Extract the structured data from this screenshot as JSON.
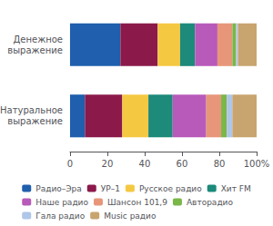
{
  "chart_data": {
    "type": "bar",
    "orientation": "horizontal",
    "stacked": true,
    "categories": [
      "Натуральное\nвыражение",
      "Денежное\nвыражение"
    ],
    "series": [
      {
        "name": "Радио–Эра",
        "color": "#1f5fad",
        "values": [
          8,
          27
        ]
      },
      {
        "name": "УР–1",
        "color": "#8b1a4a",
        "values": [
          20,
          20
        ]
      },
      {
        "name": "Русское радио",
        "color": "#f5c842",
        "values": [
          14,
          12
        ]
      },
      {
        "name": "Хит FM",
        "color": "#1d8a7a",
        "values": [
          13,
          8
        ]
      },
      {
        "name": "Наше радио",
        "color": "#b85aba",
        "values": [
          18,
          12
        ]
      },
      {
        "name": "Шансон 101,9",
        "color": "#e8967a",
        "values": [
          8,
          8
        ]
      },
      {
        "name": "Авторадио",
        "color": "#7ab648",
        "values": [
          3,
          2
        ]
      },
      {
        "name": "Гала радио",
        "color": "#aec6e8",
        "values": [
          3,
          1
        ]
      },
      {
        "name": "Music радио",
        "color": "#c8a46e",
        "values": [
          13,
          10
        ]
      }
    ],
    "xlim": [
      0,
      100
    ],
    "xticks": [
      0,
      20,
      40,
      60,
      80,
      {
        "value": 100,
        "label": "100%"
      }
    ],
    "grid": false,
    "legend": "bottom"
  }
}
